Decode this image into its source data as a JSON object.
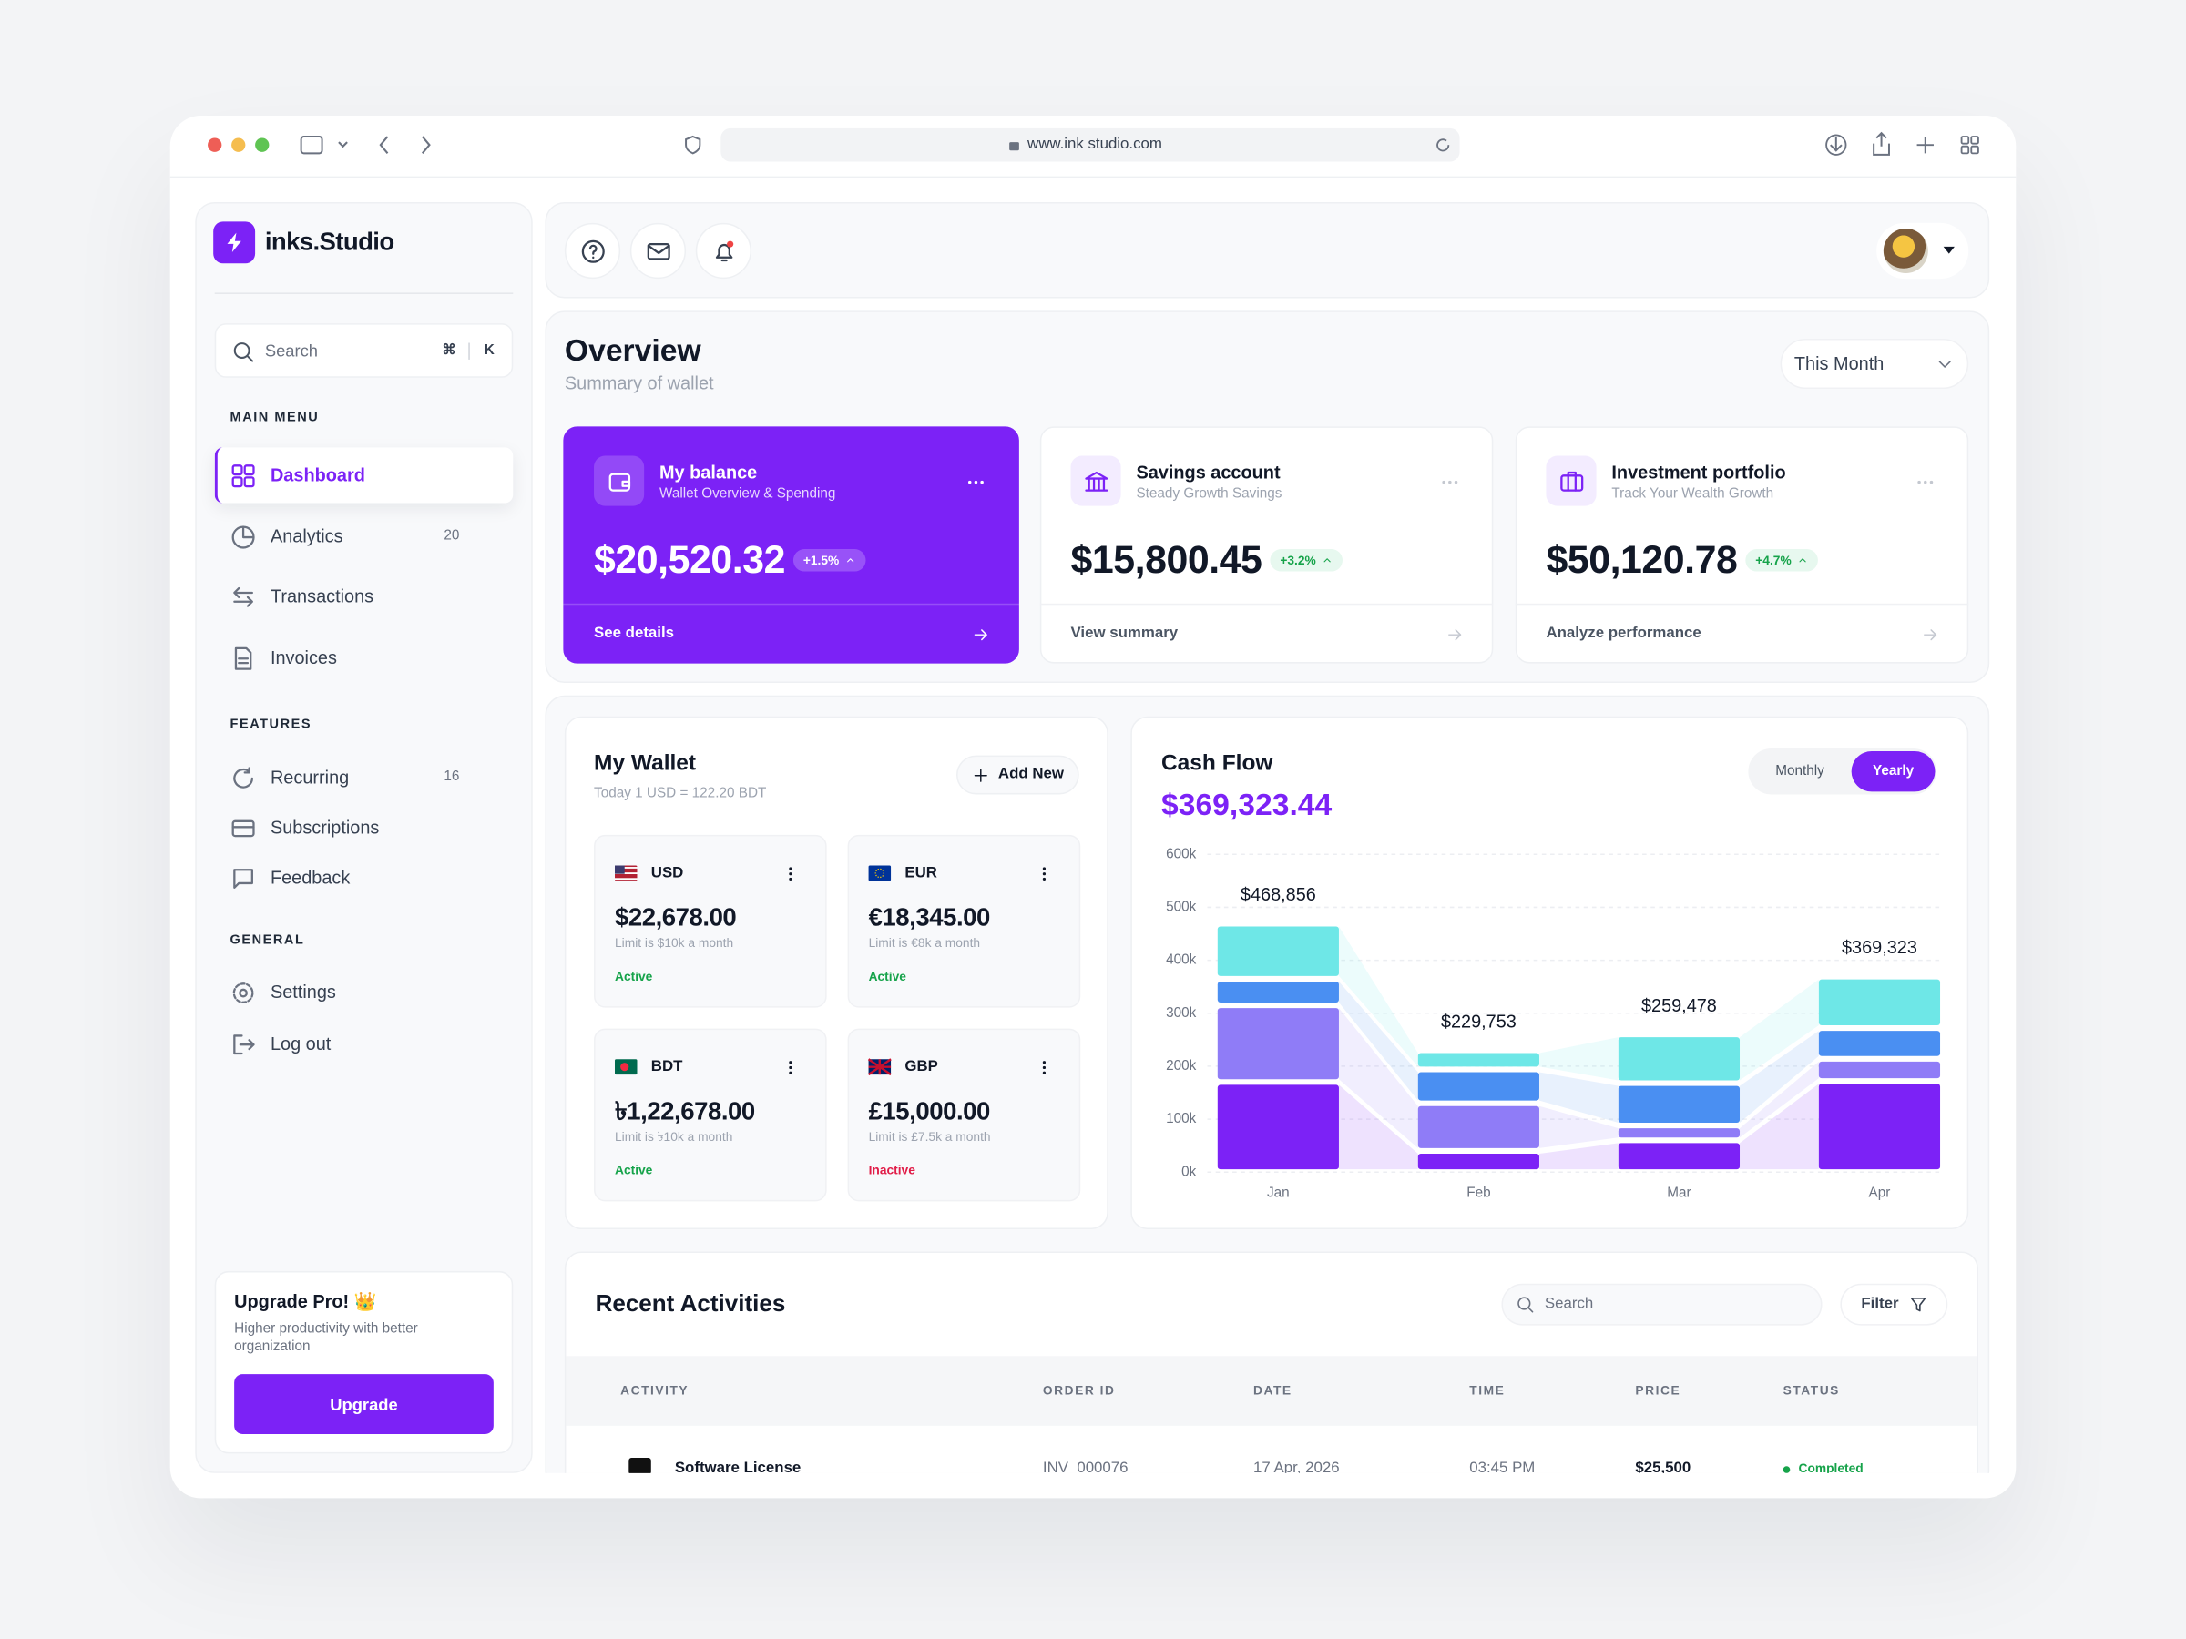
{
  "browser": {
    "url": "www.ink studio.com"
  },
  "sidebar": {
    "brand": "inks.Studio",
    "search": {
      "placeholder": "Search",
      "keys": [
        "⌘",
        "K"
      ]
    },
    "sections": [
      {
        "title": "MAIN MENU",
        "items": [
          {
            "label": "Dashboard",
            "active": true
          },
          {
            "label": "Analytics",
            "badge": 20
          },
          {
            "label": "Transactions"
          },
          {
            "label": "Invoices"
          }
        ]
      },
      {
        "title": "FEATURES",
        "items": [
          {
            "label": "Recurring",
            "badge": 16
          },
          {
            "label": "Subscriptions"
          },
          {
            "label": "Feedback"
          }
        ]
      },
      {
        "title": "GENERAL",
        "items": [
          {
            "label": "Settings"
          },
          {
            "label": "Log out"
          }
        ]
      }
    ],
    "upgrade": {
      "title": "Upgrade Pro! 👑",
      "text": "Higher productivity with better organization",
      "button": "Upgrade"
    }
  },
  "overview": {
    "title": "Overview",
    "subtitle": "Summary of wallet",
    "period": "This Month",
    "cards": [
      {
        "title": "My balance",
        "subtitle": "Wallet Overview & Spending",
        "amount": "$20,520.32",
        "change": "+1.5%",
        "link": "See details",
        "highlight": true
      },
      {
        "title": "Savings account",
        "subtitle": "Steady Growth Savings",
        "amount": "$15,800.45",
        "change": "+3.2%",
        "link": "View summary"
      },
      {
        "title": "Investment portfolio",
        "subtitle": "Track Your Wealth Growth",
        "amount": "$50,120.78",
        "change": "+4.7%",
        "link": "Analyze performance"
      }
    ]
  },
  "wallet": {
    "title": "My Wallet",
    "note": "Today 1 USD = 122.20 BDT",
    "button": "Add New",
    "currencies": [
      {
        "code": "USD",
        "amount": "$22,678.00",
        "limit": "Limit is $10k a month",
        "status": "Active"
      },
      {
        "code": "EUR",
        "amount": "€18,345.00",
        "limit": "Limit is €8k a month",
        "status": "Active"
      },
      {
        "code": "BDT",
        "amount": "৳1,22,678.00",
        "limit": "Limit is ৳10k a month",
        "status": "Active"
      },
      {
        "code": "GBP",
        "amount": "£15,000.00",
        "limit": "Limit is £7.5k a month",
        "status": "Inactive"
      }
    ]
  },
  "cash_flow": {
    "toggle": [
      "Monthly",
      "Yearly"
    ],
    "active_toggle": 1
  },
  "chart_data": {
    "type": "stacked_bar",
    "title": "Cash Flow",
    "subtitle": "$369,323.44",
    "categories": [
      "Jan",
      "Feb",
      "Mar",
      "Apr"
    ],
    "series": [
      {
        "color": "#7c22f6",
        "values": [
          170000,
          40000,
          60000,
          172000
        ]
      },
      {
        "color": "#8f7cf7",
        "values": [
          145000,
          90000,
          28000,
          42000
        ]
      },
      {
        "color": "#4a8ff2",
        "values": [
          50000,
          64000,
          80000,
          58000
        ]
      },
      {
        "color": "#6ee7e7",
        "values": [
          104000,
          36000,
          92000,
          97000
        ]
      }
    ],
    "totals": [
      468856,
      229753,
      259478,
      369323
    ],
    "total_labels": [
      "$468,856",
      "$229,753",
      "$259,478",
      "$369,323"
    ],
    "ylim": [
      0,
      600000
    ],
    "yticks": [
      {
        "value": 0,
        "label": "0k"
      },
      {
        "value": 100000,
        "label": "100k"
      },
      {
        "value": 200000,
        "label": "200k"
      },
      {
        "value": 300000,
        "label": "300k"
      },
      {
        "value": 400000,
        "label": "400k"
      },
      {
        "value": 500000,
        "label": "500k"
      },
      {
        "value": 600000,
        "label": "600k"
      }
    ],
    "grid": true
  },
  "activities": {
    "title": "Recent Activities",
    "search": "Search",
    "filter": "Filter",
    "columns": [
      "ACTIVITY",
      "ORDER ID",
      "DATE",
      "TIME",
      "PRICE",
      "STATUS"
    ],
    "rows": [
      [
        "Software License",
        "INV_000076",
        "17 Apr, 2026",
        "03:45 PM",
        "$25,500",
        "Completed"
      ]
    ]
  }
}
